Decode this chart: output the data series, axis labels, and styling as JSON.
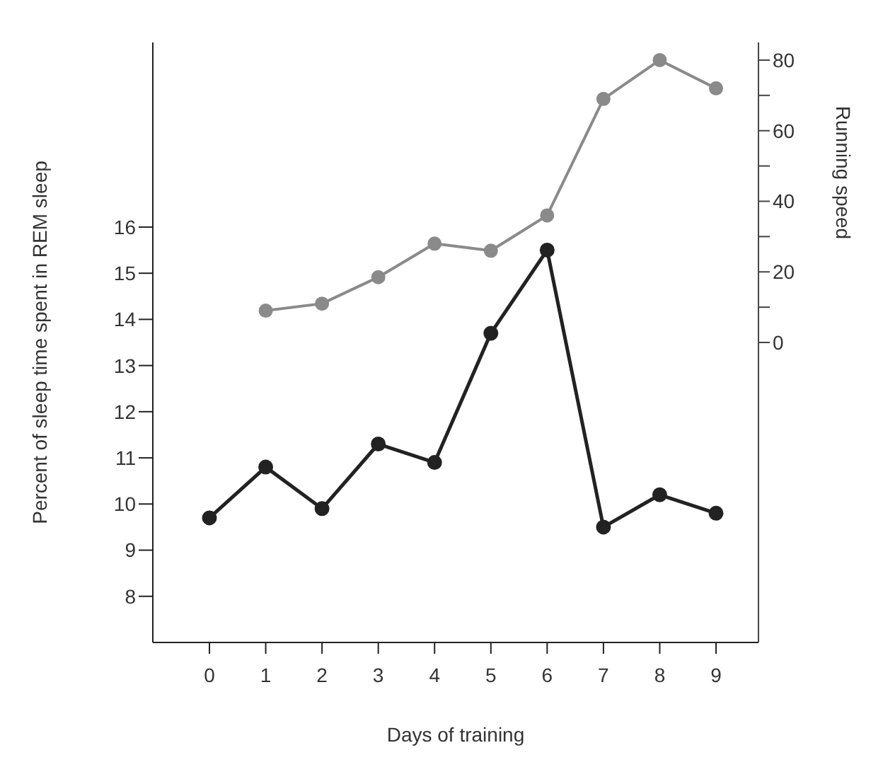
{
  "chart_data": {
    "type": "line",
    "xlabel": "Days of training",
    "ylabel": "Percent of sleep time spent in REM sleep",
    "y2label": "Running speed",
    "categories": [
      "0",
      "1",
      "2",
      "3",
      "4",
      "5",
      "6",
      "7",
      "8",
      "9"
    ],
    "series": [
      {
        "color": "#222222",
        "values": [
          9.7,
          10.8,
          9.9,
          11.3,
          10.9,
          13.7,
          15.5,
          9.5,
          10.2,
          9.8
        ]
      },
      {
        "color": "#8a8a8a",
        "axis": "y2",
        "values": [
          null,
          9,
          11,
          18.5,
          28,
          26,
          36,
          69,
          80,
          72
        ]
      }
    ],
    "ylim": [
      7,
      20
    ],
    "yticks": [
      8,
      9,
      10,
      11,
      12,
      13,
      14,
      15,
      16
    ],
    "y2lim": [
      -85,
      85
    ],
    "y2ticks": [
      0,
      {
        "value": 10,
        "label": null
      },
      20,
      {
        "value": 30,
        "label": null
      },
      40,
      {
        "value": 50,
        "label": null
      },
      60,
      {
        "value": 70,
        "label": null
      },
      80
    ],
    "marker": "circle",
    "line_style": "solid",
    "grid": false,
    "legend": false
  }
}
